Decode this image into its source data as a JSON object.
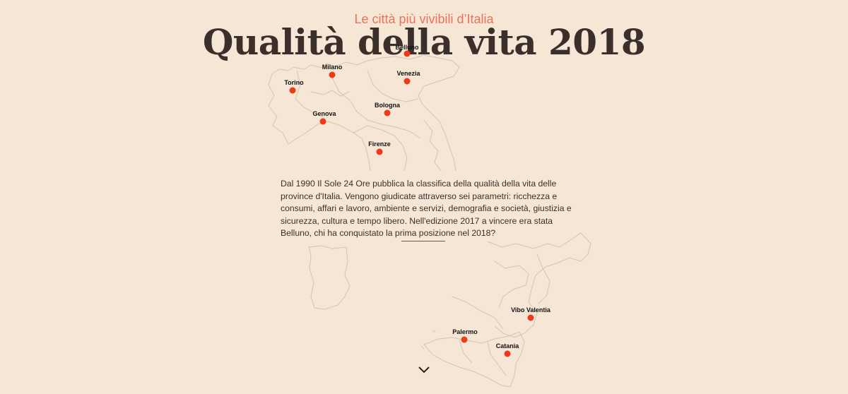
{
  "header": {
    "kicker": "Le città più vivibili d’Italia",
    "title": "Qualità della vita 2018"
  },
  "intro": {
    "text": "Dal 1990 Il Sole 24 Ore pubblica la classifica della qualità della vita delle province d'Italia. Vengono giudicate attraverso sei parametri: ricchezza e consumi, affari e lavoro, ambiente e servizi, demografia e società, giustizia e sicurezza, cultura e tempo libero. Nell'edizione 2017 a vincere era stata Belluno, chi ha conquistato la prima posizione nel 2018?"
  },
  "cities": {
    "belluno": "Belluno",
    "milano": "Milano",
    "venezia": "Venezia",
    "torino": "Torino",
    "bologna": "Bologna",
    "genova": "Genova",
    "firenze": "Firenze",
    "vibo_valentia": "Vibo Valentia",
    "palermo": "Palermo",
    "catania": "Catania"
  },
  "colors": {
    "background": "#f6e6d6",
    "accent": "#e8735a",
    "marker": "#ee3a17",
    "text": "#3b2f2c",
    "map_border": "#d2c4b6"
  },
  "icons": {
    "scroll": "chevron-down-icon"
  }
}
